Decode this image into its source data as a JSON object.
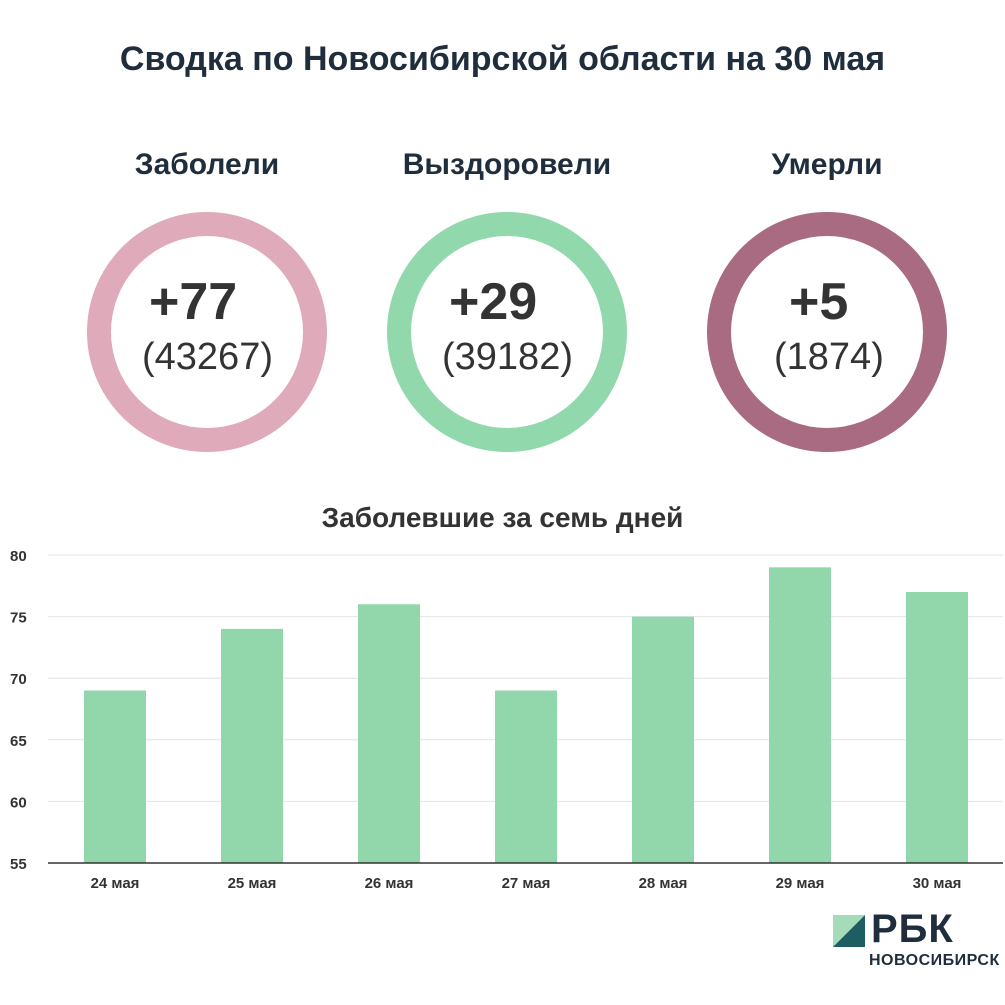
{
  "title": "Сводка по Новосибирской области на 30 мая",
  "stats": [
    {
      "label": "Заболели",
      "delta": "+77",
      "total": "(43267)",
      "color": "#dfabbb"
    },
    {
      "label": "Выздоровели",
      "delta": "+29",
      "total": "(39182)",
      "color": "#92d8ad"
    },
    {
      "label": "Умерли",
      "delta": "+5",
      "total": "(1874)",
      "color": "#a96b82"
    }
  ],
  "chart_data": {
    "type": "bar",
    "title": "Заболевшие за семь дней",
    "categories": [
      "24 мая",
      "25 мая",
      "26 мая",
      "27 мая",
      "28 мая",
      "29 мая",
      "30 мая"
    ],
    "values": [
      69,
      74,
      76,
      69,
      75,
      79,
      77
    ],
    "ylim": [
      55,
      80
    ],
    "yticks": [
      55,
      60,
      65,
      70,
      75,
      80
    ],
    "grid": true,
    "bar_color": "#92d6ab"
  },
  "logo": {
    "name": "РБК",
    "sub": "НОВОСИБИРСК"
  }
}
